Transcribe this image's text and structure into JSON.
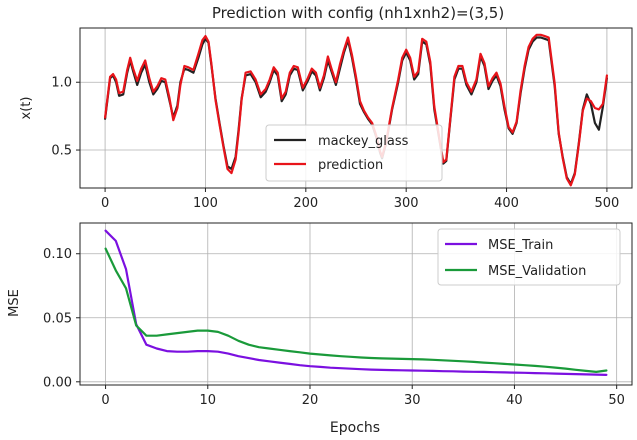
{
  "chart_data": [
    {
      "type": "line",
      "title": "Prediction with config (nh1xnh2)=(3,5)",
      "xlabel": "",
      "ylabel": "x(t)",
      "xlim": [
        -25,
        525
      ],
      "ylim": [
        0.22,
        1.4
      ],
      "xticks": [
        0,
        100,
        200,
        300,
        400,
        500
      ],
      "yticks": [
        0.5,
        1.0
      ],
      "grid": true,
      "legend": "bottom-center",
      "series": [
        {
          "name": "mackey_glass",
          "color": "#222222",
          "x": [
            0,
            5,
            8,
            11,
            14,
            18,
            22,
            25,
            28,
            32,
            36,
            40,
            44,
            48,
            52,
            56,
            60,
            64,
            68,
            72,
            75,
            79,
            83,
            88,
            93,
            97,
            100,
            103,
            106,
            110,
            114,
            118,
            122,
            126,
            130,
            133,
            136,
            140,
            145,
            150,
            155,
            160,
            164,
            168,
            172,
            176,
            180,
            184,
            188,
            192,
            197,
            202,
            206,
            210,
            214,
            218,
            222,
            226,
            230,
            234,
            238,
            242,
            246,
            250,
            254,
            258,
            262,
            266,
            270,
            274,
            276,
            280,
            286,
            292,
            296,
            300,
            304,
            308,
            312,
            316,
            320,
            324,
            328,
            333,
            337,
            340,
            344,
            348,
            352,
            356,
            360,
            365,
            370,
            374,
            378,
            382,
            386,
            390,
            394,
            398,
            402,
            406,
            410,
            414,
            418,
            422,
            426,
            430,
            434,
            438,
            442,
            448,
            452,
            456,
            460,
            464,
            468,
            472,
            476,
            480,
            484,
            488,
            492,
            496,
            500
          ],
          "values": [
            0.73,
            1.03,
            1.05,
            1.0,
            0.9,
            0.91,
            1.07,
            1.16,
            1.08,
            0.98,
            1.07,
            1.13,
            1.0,
            0.91,
            0.95,
            1.01,
            1.0,
            0.87,
            0.74,
            0.83,
            1.0,
            1.1,
            1.09,
            1.07,
            1.18,
            1.28,
            1.32,
            1.29,
            1.12,
            0.88,
            0.7,
            0.53,
            0.38,
            0.36,
            0.45,
            0.65,
            0.88,
            1.05,
            1.06,
            1.0,
            0.89,
            0.93,
            1.0,
            1.09,
            1.05,
            0.86,
            0.91,
            1.05,
            1.1,
            1.09,
            0.94,
            1.01,
            1.08,
            1.05,
            0.94,
            1.03,
            1.16,
            1.07,
            0.98,
            1.1,
            1.22,
            1.31,
            1.18,
            1.02,
            0.84,
            0.78,
            0.73,
            0.69,
            0.6,
            0.48,
            0.44,
            0.55,
            0.8,
            1.0,
            1.16,
            1.22,
            1.16,
            1.02,
            1.06,
            1.3,
            1.28,
            1.13,
            0.8,
            0.58,
            0.4,
            0.42,
            0.72,
            1.02,
            1.1,
            1.1,
            0.98,
            0.91,
            1.0,
            1.19,
            1.12,
            0.95,
            1.01,
            1.05,
            0.97,
            0.8,
            0.66,
            0.62,
            0.7,
            0.92,
            1.1,
            1.24,
            1.3,
            1.33,
            1.33,
            1.32,
            1.31,
            0.97,
            0.62,
            0.45,
            0.3,
            0.25,
            0.33,
            0.55,
            0.8,
            0.91,
            0.84,
            0.7,
            0.65,
            0.82,
            1.03
          ]
        },
        {
          "name": "prediction",
          "color": "#e8141a",
          "x": [
            0,
            5,
            8,
            11,
            14,
            18,
            22,
            25,
            28,
            32,
            36,
            40,
            44,
            48,
            52,
            56,
            60,
            64,
            68,
            72,
            75,
            79,
            83,
            88,
            93,
            97,
            100,
            103,
            106,
            110,
            114,
            118,
            122,
            126,
            130,
            133,
            136,
            140,
            145,
            150,
            155,
            160,
            164,
            168,
            172,
            176,
            180,
            184,
            188,
            192,
            197,
            202,
            206,
            210,
            214,
            218,
            222,
            226,
            230,
            234,
            238,
            242,
            246,
            250,
            254,
            258,
            262,
            266,
            270,
            274,
            276,
            280,
            286,
            292,
            296,
            300,
            304,
            308,
            312,
            316,
            320,
            324,
            328,
            333,
            337,
            340,
            344,
            348,
            352,
            356,
            360,
            365,
            370,
            374,
            378,
            382,
            386,
            390,
            394,
            398,
            402,
            406,
            410,
            414,
            418,
            422,
            426,
            430,
            434,
            438,
            442,
            448,
            452,
            456,
            460,
            464,
            468,
            472,
            476,
            480,
            484,
            488,
            492,
            496,
            500
          ],
          "values": [
            0.74,
            1.04,
            1.06,
            1.02,
            0.92,
            0.93,
            1.09,
            1.18,
            1.1,
            1.01,
            1.1,
            1.16,
            1.03,
            0.93,
            0.97,
            1.03,
            1.02,
            0.89,
            0.72,
            0.81,
            0.98,
            1.12,
            1.11,
            1.09,
            1.21,
            1.31,
            1.34,
            1.3,
            1.13,
            0.87,
            0.69,
            0.52,
            0.36,
            0.33,
            0.43,
            0.63,
            0.87,
            1.07,
            1.08,
            1.02,
            0.91,
            0.95,
            1.02,
            1.11,
            1.07,
            0.88,
            0.93,
            1.07,
            1.12,
            1.11,
            0.96,
            1.03,
            1.1,
            1.07,
            0.96,
            1.05,
            1.19,
            1.09,
            1.0,
            1.13,
            1.24,
            1.33,
            1.2,
            1.04,
            0.86,
            0.79,
            0.74,
            0.7,
            0.61,
            0.49,
            0.45,
            0.56,
            0.81,
            1.02,
            1.18,
            1.24,
            1.18,
            1.04,
            1.08,
            1.32,
            1.3,
            1.15,
            0.82,
            0.59,
            0.41,
            0.43,
            0.73,
            1.04,
            1.12,
            1.12,
            1.0,
            0.93,
            1.02,
            1.21,
            1.14,
            0.97,
            1.03,
            1.07,
            0.99,
            0.82,
            0.67,
            0.63,
            0.71,
            0.94,
            1.12,
            1.26,
            1.32,
            1.35,
            1.35,
            1.34,
            1.33,
            0.99,
            0.63,
            0.44,
            0.29,
            0.24,
            0.32,
            0.54,
            0.79,
            0.88,
            0.86,
            0.81,
            0.8,
            0.84,
            1.05
          ]
        }
      ]
    },
    {
      "type": "line",
      "title": "",
      "xlabel": "Epochs",
      "ylabel": "MSE",
      "xlim": [
        -2.5,
        51.5
      ],
      "ylim": [
        -0.0025,
        0.124
      ],
      "xticks": [
        0,
        10,
        20,
        30,
        40,
        50
      ],
      "yticks": [
        0.0,
        0.05,
        0.1
      ],
      "ytick_labels": [
        "0.00",
        "0.05",
        "0.10"
      ],
      "grid": true,
      "legend": "top-right",
      "series": [
        {
          "name": "MSE_Train",
          "color": "#7b10e0",
          "x": [
            0,
            1,
            2,
            3,
            4,
            5,
            6,
            7,
            8,
            9,
            10,
            11,
            12,
            13,
            14,
            15,
            16,
            17,
            18,
            19,
            20,
            21,
            22,
            23,
            24,
            25,
            26,
            27,
            28,
            29,
            30,
            31,
            32,
            33,
            34,
            35,
            36,
            37,
            38,
            39,
            40,
            41,
            42,
            43,
            44,
            45,
            46,
            47,
            48,
            49
          ],
          "values": [
            0.118,
            0.11,
            0.088,
            0.045,
            0.029,
            0.026,
            0.024,
            0.0235,
            0.0235,
            0.024,
            0.024,
            0.0235,
            0.022,
            0.02,
            0.0185,
            0.017,
            0.016,
            0.015,
            0.014,
            0.013,
            0.0122,
            0.0116,
            0.011,
            0.0106,
            0.0102,
            0.0098,
            0.0095,
            0.0093,
            0.0091,
            0.009,
            0.0088,
            0.0087,
            0.0085,
            0.0083,
            0.0082,
            0.008,
            0.0078,
            0.0077,
            0.0075,
            0.0073,
            0.0072,
            0.007,
            0.0068,
            0.0066,
            0.0064,
            0.0062,
            0.006,
            0.0058,
            0.0056,
            0.0054
          ]
        },
        {
          "name": "MSE_Validation",
          "color": "#1a9a3a",
          "x": [
            0,
            1,
            2,
            3,
            4,
            5,
            6,
            7,
            8,
            9,
            10,
            11,
            12,
            13,
            14,
            15,
            16,
            17,
            18,
            19,
            20,
            21,
            22,
            23,
            24,
            25,
            26,
            27,
            28,
            29,
            30,
            31,
            32,
            33,
            34,
            35,
            36,
            37,
            38,
            39,
            40,
            41,
            42,
            43,
            44,
            45,
            46,
            47,
            48,
            49
          ],
          "values": [
            0.104,
            0.087,
            0.073,
            0.044,
            0.036,
            0.036,
            0.037,
            0.038,
            0.039,
            0.04,
            0.04,
            0.039,
            0.036,
            0.032,
            0.029,
            0.027,
            0.026,
            0.025,
            0.024,
            0.023,
            0.022,
            0.0213,
            0.0206,
            0.02,
            0.0195,
            0.019,
            0.0186,
            0.0183,
            0.0181,
            0.0179,
            0.0177,
            0.0175,
            0.0172,
            0.0168,
            0.0164,
            0.016,
            0.0155,
            0.015,
            0.0145,
            0.014,
            0.0135,
            0.013,
            0.0124,
            0.0118,
            0.0111,
            0.0103,
            0.0094,
            0.0085,
            0.0077,
            0.0088
          ]
        }
      ]
    }
  ]
}
